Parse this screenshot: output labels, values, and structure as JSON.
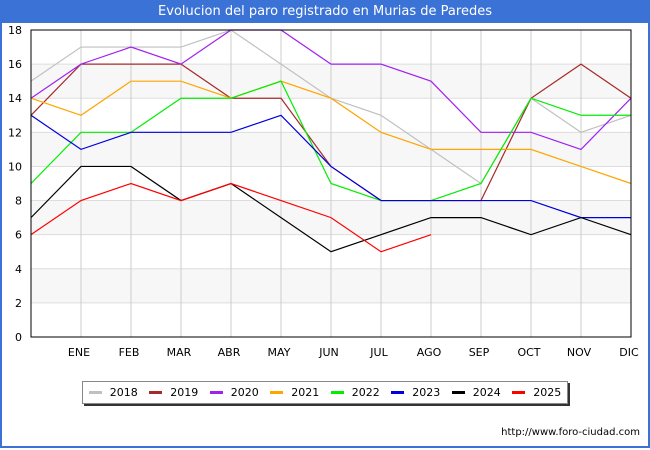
{
  "title": "Evolucion del paro registrado en Murias de Paredes",
  "footer": "http://www.foro-ciudad.com",
  "chart_data": {
    "type": "line",
    "title": "Evolucion del paro registrado en Murias de Paredes",
    "xlabel": "",
    "ylabel": "",
    "categories": [
      "",
      "ENE",
      "FEB",
      "MAR",
      "ABR",
      "MAY",
      "JUN",
      "JUL",
      "AGO",
      "SEP",
      "OCT",
      "NOV",
      "DIC"
    ],
    "ylim": [
      0,
      18
    ],
    "yticks": [
      0,
      2,
      4,
      6,
      8,
      10,
      12,
      14,
      16,
      18
    ],
    "grid": true,
    "legend_position": "bottom",
    "series": [
      {
        "name": "2018",
        "color": "#c0c0c0",
        "values": [
          15,
          17,
          17,
          17,
          18,
          16,
          14,
          13,
          11,
          9,
          14,
          12,
          13
        ]
      },
      {
        "name": "2019",
        "color": "#a52a2a",
        "values": [
          13,
          16,
          16,
          16,
          14,
          14,
          10,
          8,
          8,
          8,
          14,
          16,
          14
        ]
      },
      {
        "name": "2020",
        "color": "#a020f0",
        "values": [
          14,
          16,
          17,
          16,
          18,
          18,
          16,
          16,
          15,
          12,
          12,
          11,
          14
        ]
      },
      {
        "name": "2021",
        "color": "#ffa500",
        "values": [
          14,
          13,
          15,
          15,
          14,
          15,
          14,
          12,
          11,
          11,
          11,
          10,
          9
        ]
      },
      {
        "name": "2022",
        "color": "#00ee00",
        "values": [
          9,
          12,
          12,
          14,
          14,
          15,
          9,
          8,
          8,
          9,
          14,
          13,
          13
        ]
      },
      {
        "name": "2023",
        "color": "#0000dd",
        "values": [
          13,
          11,
          12,
          12,
          12,
          13,
          10,
          8,
          8,
          8,
          8,
          7,
          7
        ]
      },
      {
        "name": "2024",
        "color": "#000000",
        "values": [
          7,
          10,
          10,
          8,
          9,
          7,
          5,
          6,
          7,
          7,
          6,
          7,
          6
        ]
      },
      {
        "name": "2025",
        "color": "#ff0000",
        "values": [
          6,
          8,
          9,
          8,
          9,
          8,
          7,
          5,
          6
        ]
      }
    ]
  }
}
